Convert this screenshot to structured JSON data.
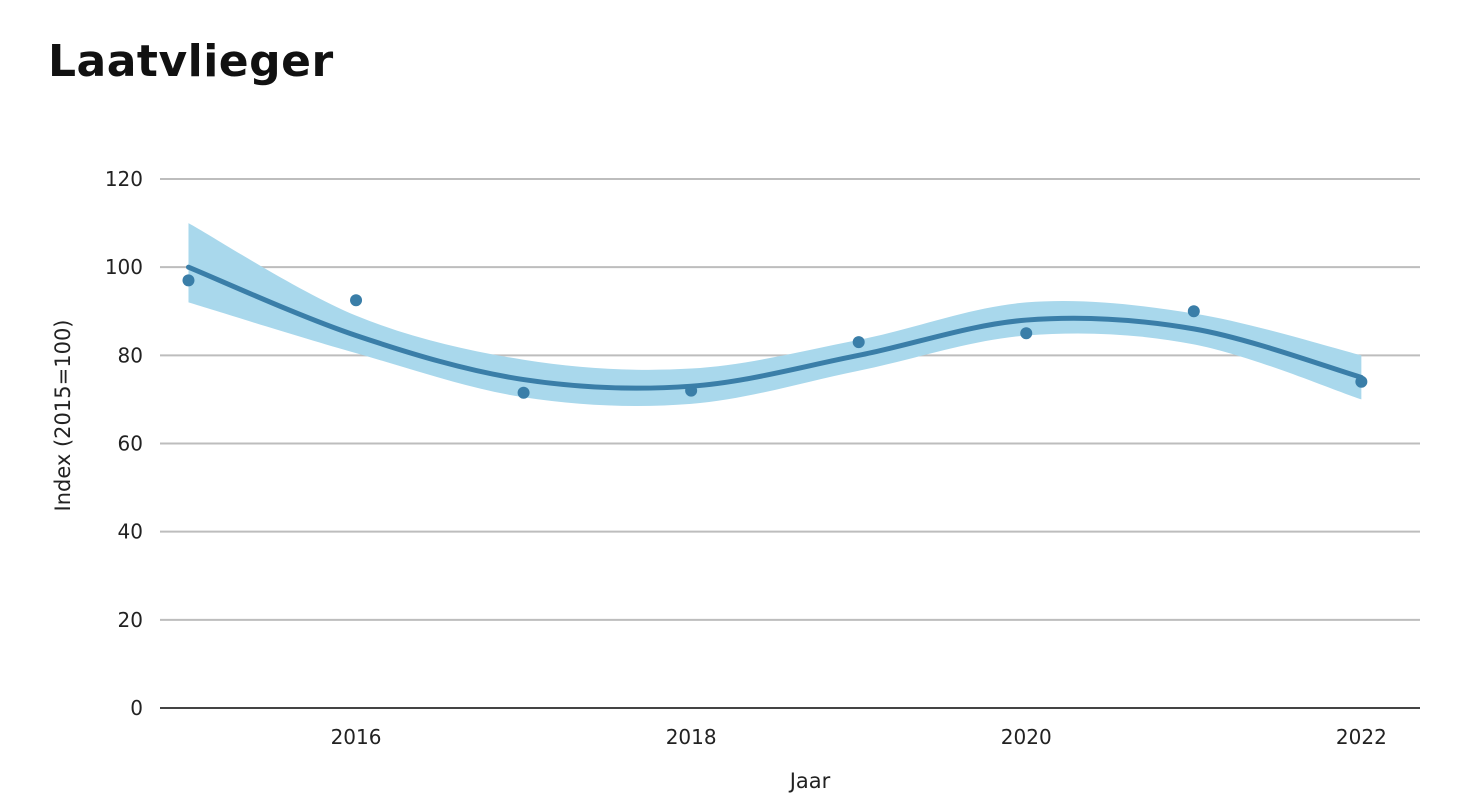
{
  "title": "Laatvlieger",
  "chart_data": {
    "type": "line",
    "title": "Laatvlieger",
    "xlabel": "Jaar",
    "ylabel": "Index (2015=100)",
    "xlim": [
      2014.83,
      2022.35
    ],
    "ylim": [
      0,
      120
    ],
    "x_ticks": [
      2016,
      2018,
      2020,
      2022
    ],
    "y_ticks": [
      0,
      20,
      40,
      60,
      80,
      100,
      120
    ],
    "grid": "horizontal",
    "legend": "none",
    "points": {
      "x": [
        2015,
        2016,
        2017,
        2018,
        2019,
        2020,
        2021,
        2022
      ],
      "y": [
        97,
        92.5,
        71.5,
        72,
        83,
        85,
        90,
        74
      ]
    },
    "trend": {
      "x": [
        2015,
        2016,
        2017,
        2018,
        2019,
        2020,
        2021,
        2022
      ],
      "y": [
        100,
        84.5,
        74.5,
        73,
        80,
        88,
        86,
        75
      ]
    },
    "band": {
      "upper": [
        110,
        89,
        79,
        77,
        83.5,
        92,
        89.5,
        80
      ],
      "lower": [
        92,
        80.5,
        70.5,
        69,
        76.5,
        84.5,
        82.5,
        70
      ]
    },
    "colors": {
      "line": "#3a7ea8",
      "band": "#a9d8ec",
      "points": "#3a7ea8",
      "grid": "#bdbdbd",
      "axis": "#444444"
    }
  }
}
